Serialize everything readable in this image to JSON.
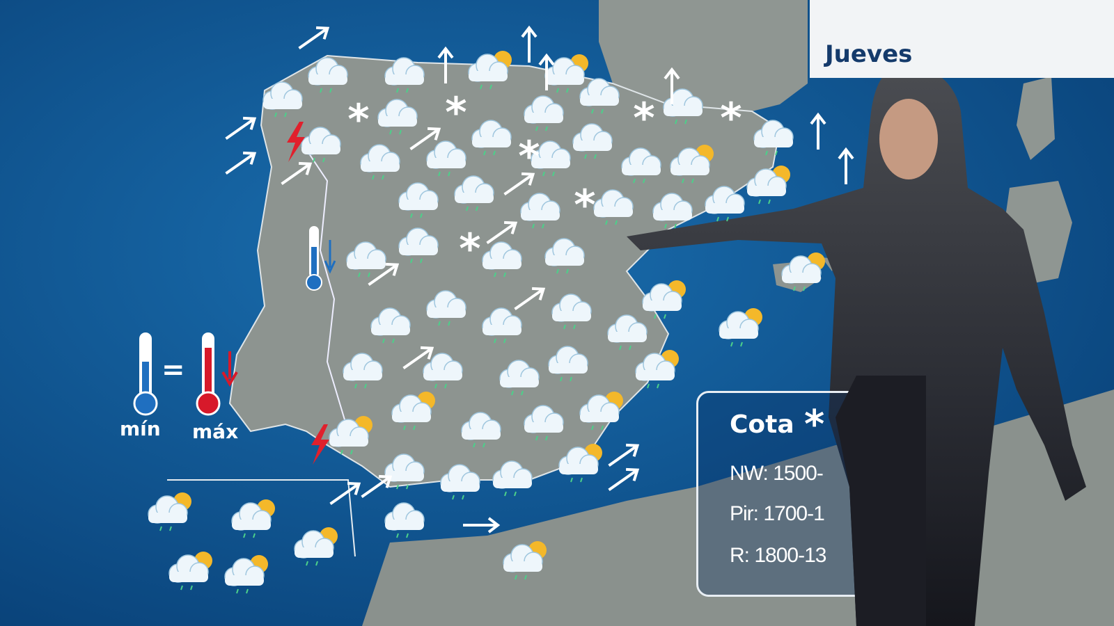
{
  "header": {
    "day": "Jueves"
  },
  "legend": {
    "min_label": "mín",
    "max_label": "máx",
    "min_trend": "equal",
    "max_trend": "down",
    "inland_trend": "down"
  },
  "cota": {
    "title": "Cota",
    "icon": "snowflake-icon",
    "lines": [
      "NW: 1500-",
      "Pir: 1700-1",
      "R: 1800-13"
    ]
  },
  "colors": {
    "sea": "#0b4f8c",
    "land": "#8d9490",
    "panel_border": "#e8eef4",
    "title": "#143a6b",
    "thermo_min": "#1f6fc0",
    "thermo_max": "#d7192a",
    "lightning": "#e0202c"
  },
  "icons": {
    "cloud_rain": "cloud-rain-icon",
    "sun_cloud": "sun-cloud-icon",
    "snow": "snowflake-icon",
    "wind": "wind-arrow-icon",
    "storm": "lightning-icon"
  }
}
